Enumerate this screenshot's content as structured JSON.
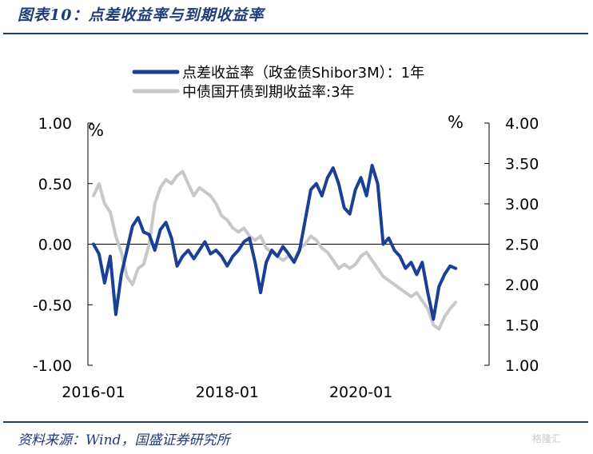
{
  "header": {
    "title": "图表10：点差收益率与到期收益率"
  },
  "footer": {
    "source": "资料来源：Wind，国盛证券研究所",
    "watermark": "格隆汇"
  },
  "chart_data": {
    "type": "line",
    "title": "",
    "xlabel": "",
    "ylabel_left": "%",
    "ylabel_right": "%",
    "x_tick_labels": [
      "2016-01",
      "2018-01",
      "2020-01"
    ],
    "x_tick_dates": [
      "2016-01",
      "2018-01",
      "2020-01"
    ],
    "x_range": [
      "2015-12",
      "2021-12"
    ],
    "ylim_left": [
      -1.0,
      1.0
    ],
    "ylim_right": [
      1.0,
      4.0
    ],
    "yticks_left": [
      "1.00",
      "0.50",
      "0.00",
      "-0.50",
      "-1.00"
    ],
    "yticks_right": [
      "4.00",
      "3.50",
      "3.00",
      "2.50",
      "2.00",
      "1.50",
      "1.00"
    ],
    "grid": false,
    "legend_position": "top-center",
    "series": [
      {
        "name": "点差收益率（政金债Shibor3M）：1年",
        "axis": "left",
        "color": "#1a3f96",
        "points": [
          [
            "2016-01",
            0.0
          ],
          [
            "2016-02",
            -0.08
          ],
          [
            "2016-03",
            -0.32
          ],
          [
            "2016-04",
            -0.1
          ],
          [
            "2016-05",
            -0.58
          ],
          [
            "2016-06",
            -0.25
          ],
          [
            "2016-07",
            -0.05
          ],
          [
            "2016-08",
            0.15
          ],
          [
            "2016-09",
            0.22
          ],
          [
            "2016-10",
            0.1
          ],
          [
            "2016-11",
            0.08
          ],
          [
            "2016-12",
            -0.05
          ],
          [
            "2017-01",
            0.12
          ],
          [
            "2017-02",
            0.18
          ],
          [
            "2017-03",
            0.05
          ],
          [
            "2017-04",
            -0.18
          ],
          [
            "2017-05",
            -0.1
          ],
          [
            "2017-06",
            -0.05
          ],
          [
            "2017-07",
            -0.12
          ],
          [
            "2017-08",
            -0.05
          ],
          [
            "2017-09",
            0.02
          ],
          [
            "2017-10",
            -0.08
          ],
          [
            "2017-11",
            -0.05
          ],
          [
            "2017-12",
            -0.1
          ],
          [
            "2018-01",
            -0.18
          ],
          [
            "2018-02",
            -0.1
          ],
          [
            "2018-03",
            -0.05
          ],
          [
            "2018-04",
            0.02
          ],
          [
            "2018-05",
            0.05
          ],
          [
            "2018-06",
            -0.15
          ],
          [
            "2018-07",
            -0.4
          ],
          [
            "2018-08",
            -0.15
          ],
          [
            "2018-09",
            -0.05
          ],
          [
            "2018-10",
            -0.1
          ],
          [
            "2018-11",
            -0.02
          ],
          [
            "2018-12",
            -0.08
          ],
          [
            "2019-01",
            -0.15
          ],
          [
            "2019-02",
            -0.05
          ],
          [
            "2019-03",
            0.2
          ],
          [
            "2019-04",
            0.45
          ],
          [
            "2019-05",
            0.5
          ],
          [
            "2019-06",
            0.4
          ],
          [
            "2019-07",
            0.55
          ],
          [
            "2019-08",
            0.63
          ],
          [
            "2019-09",
            0.5
          ],
          [
            "2019-10",
            0.3
          ],
          [
            "2019-11",
            0.25
          ],
          [
            "2019-12",
            0.45
          ],
          [
            "2020-01",
            0.55
          ],
          [
            "2020-02",
            0.4
          ],
          [
            "2020-03",
            0.65
          ],
          [
            "2020-04",
            0.5
          ],
          [
            "2020-05",
            0.0
          ],
          [
            "2020-06",
            0.05
          ],
          [
            "2020-07",
            -0.05
          ],
          [
            "2020-08",
            -0.1
          ],
          [
            "2020-09",
            -0.2
          ],
          [
            "2020-10",
            -0.15
          ],
          [
            "2020-11",
            -0.25
          ],
          [
            "2020-12",
            -0.15
          ],
          [
            "2021-01",
            -0.4
          ],
          [
            "2021-02",
            -0.62
          ],
          [
            "2021-03",
            -0.35
          ],
          [
            "2021-04",
            -0.25
          ],
          [
            "2021-05",
            -0.18
          ],
          [
            "2021-06",
            -0.2
          ]
        ]
      },
      {
        "name": "中债国开债到期收益率:3年",
        "axis": "right",
        "color": "#c8c8c8",
        "points": [
          [
            "2016-01",
            3.1
          ],
          [
            "2016-02",
            3.25
          ],
          [
            "2016-03",
            3.0
          ],
          [
            "2016-04",
            2.9
          ],
          [
            "2016-05",
            2.6
          ],
          [
            "2016-06",
            2.4
          ],
          [
            "2016-07",
            2.1
          ],
          [
            "2016-08",
            2.0
          ],
          [
            "2016-09",
            2.2
          ],
          [
            "2016-10",
            2.25
          ],
          [
            "2016-11",
            2.5
          ],
          [
            "2016-12",
            3.0
          ],
          [
            "2017-01",
            3.2
          ],
          [
            "2017-02",
            3.3
          ],
          [
            "2017-03",
            3.25
          ],
          [
            "2017-04",
            3.35
          ],
          [
            "2017-05",
            3.4
          ],
          [
            "2017-06",
            3.25
          ],
          [
            "2017-07",
            3.1
          ],
          [
            "2017-08",
            3.2
          ],
          [
            "2017-09",
            3.15
          ],
          [
            "2017-10",
            3.1
          ],
          [
            "2017-11",
            3.0
          ],
          [
            "2017-12",
            2.85
          ],
          [
            "2018-01",
            2.8
          ],
          [
            "2018-02",
            2.7
          ],
          [
            "2018-03",
            2.65
          ],
          [
            "2018-04",
            2.7
          ],
          [
            "2018-05",
            2.6
          ],
          [
            "2018-06",
            2.55
          ],
          [
            "2018-07",
            2.6
          ],
          [
            "2018-08",
            2.45
          ],
          [
            "2018-09",
            2.4
          ],
          [
            "2018-10",
            2.35
          ],
          [
            "2018-11",
            2.3
          ],
          [
            "2018-12",
            2.35
          ],
          [
            "2019-01",
            2.3
          ],
          [
            "2019-02",
            2.45
          ],
          [
            "2019-03",
            2.5
          ],
          [
            "2019-04",
            2.6
          ],
          [
            "2019-05",
            2.55
          ],
          [
            "2019-06",
            2.45
          ],
          [
            "2019-07",
            2.4
          ],
          [
            "2019-08",
            2.3
          ],
          [
            "2019-09",
            2.2
          ],
          [
            "2019-10",
            2.25
          ],
          [
            "2019-11",
            2.2
          ],
          [
            "2019-12",
            2.25
          ],
          [
            "2020-01",
            2.35
          ],
          [
            "2020-02",
            2.4
          ],
          [
            "2020-03",
            2.3
          ],
          [
            "2020-04",
            2.2
          ],
          [
            "2020-05",
            2.1
          ],
          [
            "2020-06",
            2.05
          ],
          [
            "2020-07",
            2.0
          ],
          [
            "2020-08",
            1.95
          ],
          [
            "2020-09",
            1.9
          ],
          [
            "2020-10",
            1.85
          ],
          [
            "2020-11",
            1.9
          ],
          [
            "2020-12",
            1.8
          ],
          [
            "2021-01",
            1.7
          ],
          [
            "2021-02",
            1.5
          ],
          [
            "2021-03",
            1.45
          ],
          [
            "2021-04",
            1.6
          ],
          [
            "2021-05",
            1.7
          ],
          [
            "2021-06",
            1.78
          ]
        ]
      }
    ]
  }
}
